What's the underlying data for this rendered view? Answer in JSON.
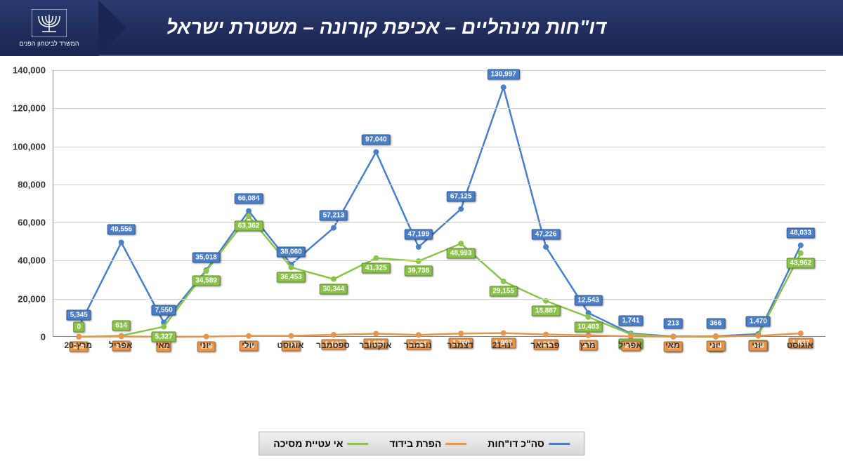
{
  "header": {
    "title": "דו\"חות מינהליים – אכיפת קורונה – משטרת ישראל",
    "emblem_text": "המשרד לביטחון הפנים"
  },
  "chart": {
    "type": "line",
    "ylim": [
      0,
      140000
    ],
    "ytick_step": 20000,
    "yticks": [
      "0",
      "20,000",
      "40,000",
      "60,000",
      "80,000",
      "100,000",
      "120,000",
      "140,000"
    ],
    "categories": [
      "מרץ-20",
      "אפריל",
      "מאי",
      "יוני",
      "יולי",
      "אוגוסט",
      "ספטמבר",
      "אוקטובר",
      "נובמבר",
      "דצמבר",
      "ינו-21",
      "פברואר",
      "מרץ",
      "אפריל",
      "מאי",
      "יוני",
      "יוני",
      "אוגוסט"
    ],
    "series": [
      {
        "name": "סה\"כ דו\"חות",
        "color": "#4a7ec8",
        "label_bg": "#4a7ec8",
        "values": [
          5345,
          49556,
          7550,
          35018,
          66084,
          38060,
          57213,
          97040,
          47199,
          67125,
          130997,
          47226,
          12543,
          1741,
          213,
          366,
          1470,
          48033
        ],
        "labels": [
          "5,345",
          "49,556",
          "7,550",
          "35,018",
          "66,084",
          "38,060",
          "57,213",
          "97,040",
          "47,199",
          "67,125",
          "130,997",
          "47,226",
          "12,543",
          "1,741",
          "213",
          "366",
          "1,470",
          "48,033"
        ],
        "label_offset_y": -18
      },
      {
        "name": "אי עטיית מסיכה",
        "color": "#8bc34a",
        "label_bg": "#8bc34a",
        "values": [
          0,
          614,
          5327,
          34589,
          63362,
          36453,
          30344,
          41325,
          39738,
          48993,
          29155,
          18887,
          10403,
          1355,
          25,
          16,
          852,
          43962
        ],
        "labels": [
          "0",
          "614",
          "5,327",
          "34,589",
          "63,362",
          "36,453",
          "30,344",
          "41,325",
          "39,738",
          "48,993",
          "29,155",
          "18,887",
          "10,403",
          "1,355",
          "25",
          "16",
          "852",
          "43,962"
        ],
        "label_offset_y": 14
      },
      {
        "name": "הפרת בידוד",
        "color": "#e8944a",
        "label_bg": "#e8944a",
        "values": [
          125,
          195,
          72,
          138,
          496,
          527,
          1120,
          1636,
          1025,
          1760,
          1992,
          1261,
          822,
          255,
          150,
          294,
          523,
          1827
        ],
        "labels": [
          "125",
          "195",
          "72",
          "138",
          "496",
          "527",
          "1,120",
          "1,636",
          "1,025",
          "1,760",
          "1,992",
          "1,261",
          "822",
          "255",
          "150",
          "294",
          "523",
          "1,827"
        ],
        "label_offset_y": 12
      }
    ],
    "line_width": 2.5,
    "marker_size": 4,
    "background_color": "#ffffff",
    "grid_color": "#d0d0d0"
  },
  "legend": {
    "items": [
      {
        "label": "סה\"כ דו\"חות",
        "color": "#4a7ec8"
      },
      {
        "label": "הפרת בידוד",
        "color": "#e8944a"
      },
      {
        "label": "אי עטיית מסיכה",
        "color": "#8bc34a"
      }
    ]
  }
}
